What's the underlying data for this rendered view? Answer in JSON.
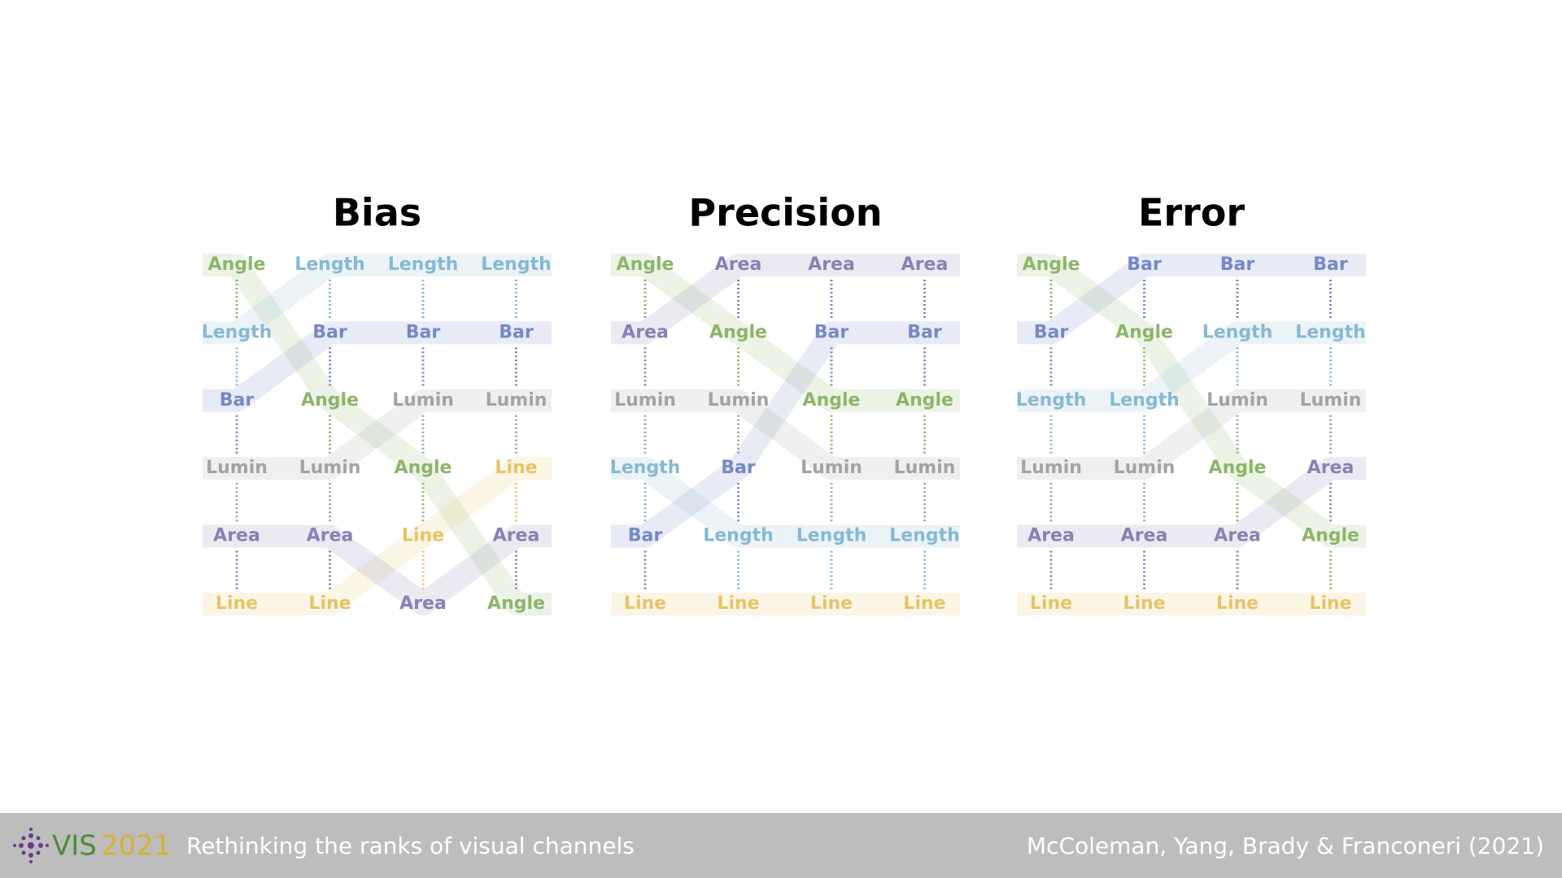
{
  "panels": [
    {
      "title": "Bias",
      "rows": [
        [
          "Angle",
          "Length",
          "Length",
          "Length"
        ],
        [
          "Length",
          "Bar",
          "Bar",
          "Bar"
        ],
        [
          "Bar",
          "Angle",
          "Lumin",
          "Lumin"
        ],
        [
          "Lumin",
          "Lumin",
          "Angle",
          "Line"
        ],
        [
          "Area",
          "Area",
          "Line",
          "Area"
        ],
        [
          "Line",
          "Line",
          "Area",
          "Angle"
        ]
      ]
    },
    {
      "title": "Precision",
      "rows": [
        [
          "Angle",
          "Area",
          "Area",
          "Area"
        ],
        [
          "Area",
          "Angle",
          "Bar",
          "Bar"
        ],
        [
          "Lumin",
          "Lumin",
          "Angle",
          "Angle"
        ],
        [
          "Length",
          "Bar",
          "Lumin",
          "Lumin"
        ],
        [
          "Bar",
          "Length",
          "Length",
          "Length"
        ],
        [
          "Line",
          "Line",
          "Line",
          "Line"
        ]
      ]
    },
    {
      "title": "Error",
      "rows": [
        [
          "Angle",
          "Bar",
          "Bar",
          "Bar"
        ],
        [
          "Bar",
          "Angle",
          "Length",
          "Length"
        ],
        [
          "Length",
          "Length",
          "Lumin",
          "Lumin"
        ],
        [
          "Lumin",
          "Lumin",
          "Angle",
          "Area"
        ],
        [
          "Area",
          "Area",
          "Area",
          "Angle"
        ],
        [
          "Line",
          "Line",
          "Line",
          "Line"
        ]
      ]
    }
  ],
  "colors": {
    "Angle": "#8db56a",
    "Length": "#86b9d2",
    "Bar": "#7688c6",
    "Lumin": "#a3a3a3",
    "Area": "#8a80b2",
    "Line": "#e5c468"
  },
  "footer": {
    "logo_vis": "VIS",
    "logo_year": "2021",
    "subtitle": "Rethinking the ranks of visual channels",
    "authors": "McColeman, Yang, Brady & Franconeri (2021)"
  }
}
